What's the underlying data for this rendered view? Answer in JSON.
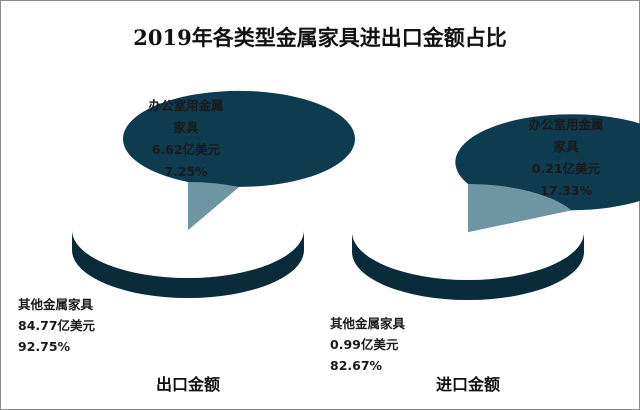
{
  "title": "2019年各类型金属家具进出口金额占比",
  "colors": {
    "dark": "#0e3b4e",
    "dark_side": "#0a2c3a",
    "light": "#6e95a3",
    "light_side": "#537784"
  },
  "chart_data": [
    {
      "type": "pie",
      "title": "出口金额",
      "slices": [
        {
          "name_lines": [
            "办公室用金属",
            "家具"
          ],
          "value": 6.62,
          "value_text": "6.62亿美元",
          "percent": 7.25,
          "percent_text": "7.25%"
        },
        {
          "name_lines": [
            "其他金属家具"
          ],
          "value": 84.77,
          "value_text": "84.77亿美元",
          "percent": 92.75,
          "percent_text": "92.75%"
        }
      ]
    },
    {
      "type": "pie",
      "title": "进口金额",
      "slices": [
        {
          "name_lines": [
            "办公室用金属",
            "家具"
          ],
          "value": 0.21,
          "value_text": "0.21亿美元",
          "percent": 17.33,
          "percent_text": "17.33%"
        },
        {
          "name_lines": [
            "其他金属家具"
          ],
          "value": 0.99,
          "value_text": "0.99亿美元",
          "percent": 82.67,
          "percent_text": "82.67%"
        }
      ]
    }
  ]
}
